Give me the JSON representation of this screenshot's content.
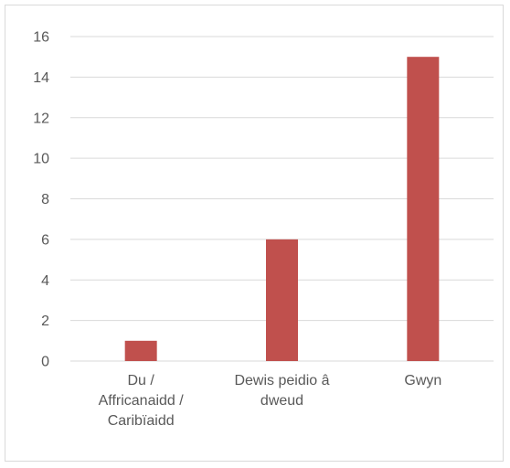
{
  "chart_data": {
    "type": "bar",
    "categories": [
      [
        "Du /",
        "Affricanaidd /",
        "Caribïaidd"
      ],
      [
        "Dewis peidio â",
        "dweud"
      ],
      [
        "Gwyn"
      ]
    ],
    "values": [
      1,
      6,
      15
    ],
    "ylim": [
      0,
      16
    ],
    "yticks": [
      0,
      2,
      4,
      6,
      8,
      10,
      12,
      14,
      16
    ],
    "grid": true,
    "legend": "none",
    "title": "",
    "xlabel": "",
    "ylabel": "",
    "colors": {
      "bar": "#c0504d",
      "grid": "#d9d9d9",
      "text": "#595959",
      "axis": "#d9d9d9"
    }
  }
}
